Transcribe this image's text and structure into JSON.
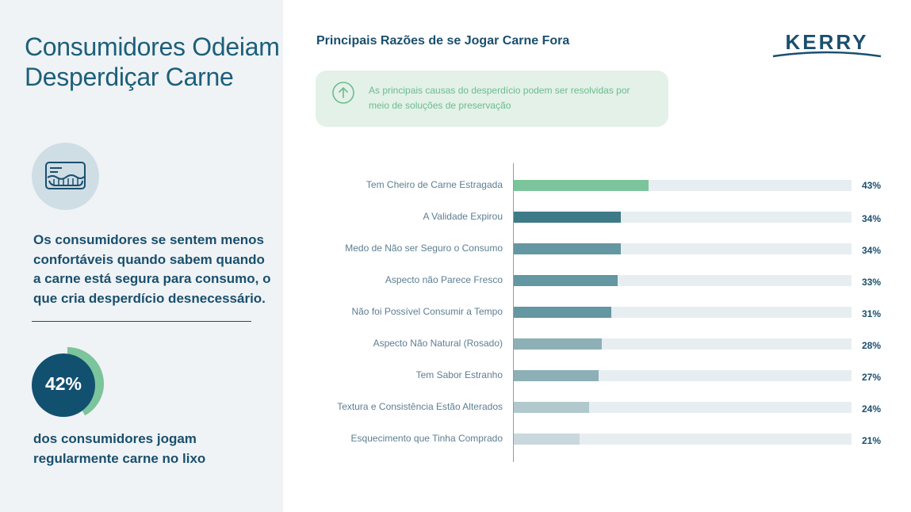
{
  "left_panel": {
    "title_line1": "Consumidores Odeiam",
    "title_line2": "Desperdiçar Carne",
    "icon": "meat-package-icon",
    "description": "Os consumidores se sentem menos confortáveis quando sabem quando a carne está segura para consumo, o que cria desperdício desnecessário.",
    "stat_value": "42%",
    "stat_fraction": 0.42,
    "stat_caption": "dos consumidores jogam regularmente carne no lixo"
  },
  "header": {
    "chart_title": "Principais Razões de se Jogar Carne Fora",
    "brand": "KERRY"
  },
  "callout": {
    "icon": "arrow-up-circle-icon",
    "text": "As principais causas do desperdício podem ser resolvidas por meio de soluções de preservação"
  },
  "colors": {
    "navy": "#1a4f6e",
    "green": "#7cc49b",
    "track": "#e7eef2"
  },
  "chart_data": {
    "type": "bar",
    "orientation": "horizontal",
    "title": "Principais Razões de se Jogar Carne Fora",
    "xlim": [
      0,
      100
    ],
    "unit": "%",
    "categories": [
      "Tem Cheiro de Carne Estragada",
      "A Validade Expirou",
      "Medo de Não ser Seguro o Consumo",
      "Aspecto não Parece Fresco",
      "Não foi Possível Consumir a Tempo",
      "Aspecto Não Natural (Rosado)",
      "Tem Sabor Estranho",
      "Textura e Consistência Estão Alterados",
      "Esquecimento que Tinha Comprado"
    ],
    "values": [
      43,
      34,
      34,
      33,
      31,
      28,
      27,
      24,
      21
    ],
    "value_labels": [
      "43%",
      "34%",
      "34%",
      "33%",
      "31%",
      "28%",
      "27%",
      "24%",
      "21%"
    ],
    "bar_colors": [
      "#7cc49b",
      "#3e7a87",
      "#6497a1",
      "#6497a1",
      "#6497a1",
      "#8cb0b6",
      "#8cb0b6",
      "#b1c9cd",
      "#c9d8dc"
    ]
  }
}
